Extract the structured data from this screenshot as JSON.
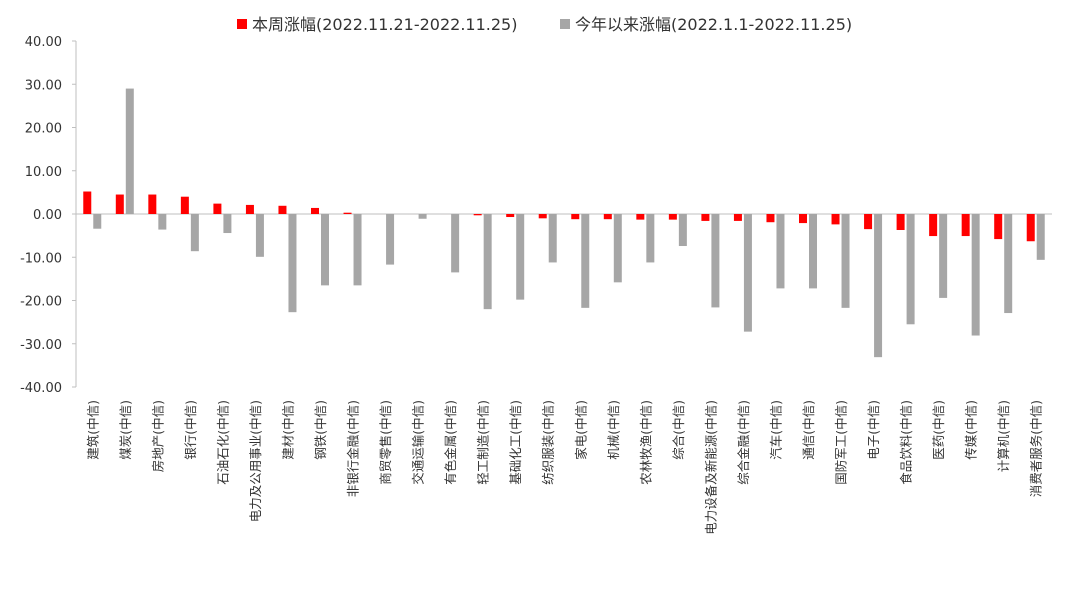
{
  "chart_data": {
    "type": "bar",
    "categories": [
      "建筑(中信)",
      "煤炭(中信)",
      "房地产(中信)",
      "银行(中信)",
      "石油石化(中信)",
      "电力及公用事业(中信)",
      "建材(中信)",
      "钢铁(中信)",
      "非银行金融(中信)",
      "商贸零售(中信)",
      "交通运输(中信)",
      "有色金属(中信)",
      "轻工制造(中信)",
      "基础化工(中信)",
      "纺织服装(中信)",
      "家电(中信)",
      "机械(中信)",
      "农林牧渔(中信)",
      "综合(中信)",
      "电力设备及新能源(中信)",
      "综合金融(中信)",
      "汽车(中信)",
      "通信(中信)",
      "国防军工(中信)",
      "电子(中信)",
      "食品饮料(中信)",
      "医药(中信)",
      "传媒(中信)",
      "计算机(中信)",
      "消费者服务(中信)"
    ],
    "series": [
      {
        "name": "本周涨幅(2022.11.21-2022.11.25)",
        "color": "#ff0000",
        "values": [
          5.2,
          4.5,
          4.5,
          4.0,
          2.4,
          2.1,
          1.9,
          1.4,
          0.3,
          0.0,
          0.0,
          0.0,
          -0.3,
          -0.7,
          -1.0,
          -1.2,
          -1.2,
          -1.3,
          -1.3,
          -1.6,
          -1.6,
          -1.9,
          -2.1,
          -2.4,
          -3.5,
          -3.7,
          -5.1,
          -5.1,
          -5.8,
          -6.3
        ]
      },
      {
        "name": "今年以来涨幅(2022.1.1-2022.11.25)",
        "color": "#a6a6a6",
        "values": [
          -3.4,
          29.0,
          -3.6,
          -8.6,
          -4.4,
          -9.9,
          -22.7,
          -16.5,
          -16.5,
          -11.7,
          -1.1,
          -13.5,
          -22.0,
          -19.8,
          -11.2,
          -21.7,
          -15.8,
          -11.2,
          -7.4,
          -21.6,
          -27.2,
          -17.2,
          -17.2,
          -21.7,
          -33.1,
          -25.5,
          -19.4,
          -28.1,
          -22.9,
          -10.6
        ]
      }
    ],
    "ylim": [
      -40,
      40
    ],
    "yticks": [
      "40.00",
      "30.00",
      "20.00",
      "10.00",
      "0.00",
      "-10.00",
      "-20.00",
      "-30.00",
      "-40.00"
    ],
    "ytick_values": [
      40,
      30,
      20,
      10,
      0,
      -10,
      -20,
      -30,
      -40
    ],
    "legend_position": "top",
    "grid": false
  }
}
